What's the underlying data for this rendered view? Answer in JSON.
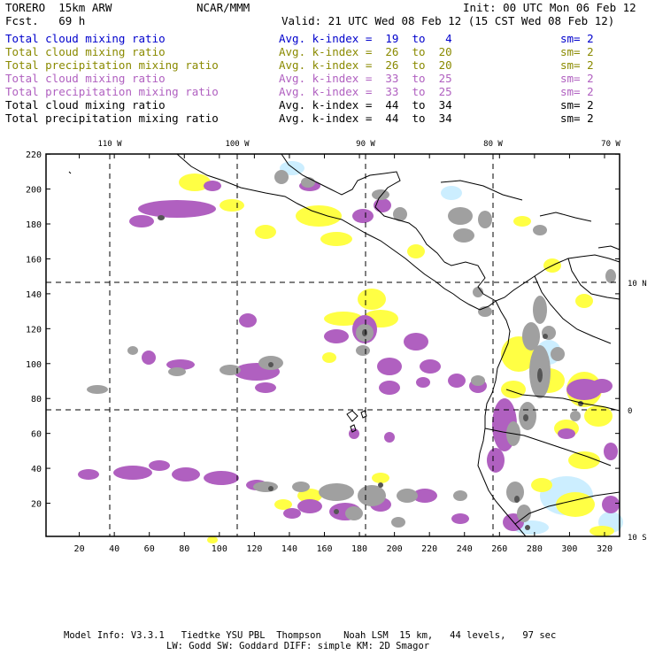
{
  "header": {
    "model": "TORERO  15km ARW",
    "org": "NCAR/MMM",
    "init": "Init: 00 UTC Mon 06 Feb 12",
    "fcst": "Fcst.   69 h",
    "valid": "Valid: 21 UTC Wed 08 Feb 12 (15 CST Wed 08 Feb 12)"
  },
  "legend": [
    {
      "field": "Total cloud mixing ratio",
      "index": "Avg. k-index =  19  to   4",
      "sm": "sm= 2",
      "color": "#0000cc"
    },
    {
      "field": "Total cloud mixing ratio",
      "index": "Avg. k-index =  26  to  20",
      "sm": "sm= 2",
      "color": "#8a8a00"
    },
    {
      "field": "Total precipitation mixing ratio",
      "index": "Avg. k-index =  26  to  20",
      "sm": "sm= 2",
      "color": "#8a8a00"
    },
    {
      "field": "Total cloud mixing ratio",
      "index": "Avg. k-index =  33  to  25",
      "sm": "sm= 2",
      "color": "#b060c0"
    },
    {
      "field": "Total precipitation mixing ratio",
      "index": "Avg. k-index =  33  to  25",
      "sm": "sm= 2",
      "color": "#b060c0"
    },
    {
      "field": "Total cloud mixing ratio",
      "index": "Avg. k-index =  44  to  34",
      "sm": "sm= 2",
      "color": "#000000"
    },
    {
      "field": "Total precipitation mixing ratio",
      "index": "Avg. k-index =  44  to  34",
      "sm": "sm= 2",
      "color": "#000000"
    }
  ],
  "map": {
    "x_ticks": [
      "20",
      "40",
      "60",
      "80",
      "100",
      "120",
      "140",
      "160",
      "180",
      "200",
      "220",
      "240",
      "260",
      "280",
      "300",
      "320"
    ],
    "y_ticks": [
      "20",
      "40",
      "60",
      "80",
      "100",
      "120",
      "140",
      "160",
      "180",
      "200",
      "220"
    ],
    "lon_labels": [
      "110 W",
      "100 W",
      "90 W",
      "80 W",
      "70 W"
    ],
    "lat_labels": [
      "10 N",
      "0",
      "10 S"
    ],
    "colors": {
      "light_blue": "#cceeff",
      "yellow": "#ffff44",
      "purple": "#b060c0",
      "gray": "#a0a0a0",
      "dark": "#555555"
    }
  },
  "footer": {
    "line1": "Model Info: V3.3.1   Tiedtke YSU PBL  Thompson    Noah LSM  15 km,   44 levels,   97 sec",
    "line2": "LW: Godd SW: Goddard DIFF: simple KM: 2D Smagor"
  }
}
